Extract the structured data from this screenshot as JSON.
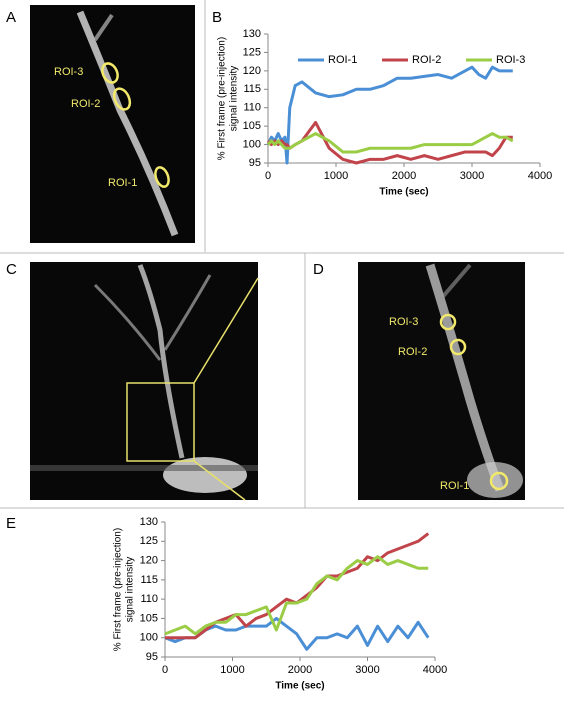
{
  "panels": {
    "A": {
      "letter": "A",
      "labels": [
        "ROI-3",
        "ROI-2",
        "ROI-1"
      ]
    },
    "B": {
      "letter": "B"
    },
    "C": {
      "letter": "C"
    },
    "D": {
      "letter": "D",
      "labels": [
        "ROI-3",
        "ROI-2",
        "ROI-1"
      ]
    },
    "E": {
      "letter": "E"
    }
  },
  "chart_data": [
    {
      "type": "line",
      "ylabel": [
        "% First frame (pre-injection)",
        "signal intensity"
      ],
      "xlabel": "Time (sec)",
      "xlim": [
        0,
        4000
      ],
      "xticks": [
        0,
        1000,
        2000,
        3000,
        4000
      ],
      "ylim": [
        95,
        130
      ],
      "yticks": [
        95,
        100,
        105,
        110,
        115,
        120,
        125,
        130
      ],
      "legend": "top",
      "x": [
        0,
        50,
        100,
        150,
        200,
        250,
        280,
        320,
        400,
        500,
        700,
        900,
        1100,
        1300,
        1500,
        1700,
        1900,
        2100,
        2300,
        2500,
        2700,
        2900,
        3000,
        3100,
        3200,
        3300,
        3400,
        3500,
        3600
      ],
      "series": [
        {
          "name": "ROI-1",
          "color": "#4a8fd6",
          "values": [
            100,
            102,
            101,
            103,
            101,
            102,
            95,
            110,
            116,
            117,
            114,
            113,
            113.5,
            115,
            115,
            116,
            118,
            118,
            118.5,
            119,
            118,
            120,
            121,
            119,
            118,
            121,
            120,
            120,
            120
          ]
        },
        {
          "name": "ROI-2",
          "color": "#c0444a",
          "values": [
            101,
            100,
            101,
            100,
            101,
            100,
            100,
            99,
            100,
            101,
            106,
            99,
            96,
            95,
            96,
            96,
            97,
            96,
            97,
            96,
            97,
            98,
            98,
            98,
            98,
            97,
            99,
            102,
            102
          ]
        },
        {
          "name": "ROI-3",
          "color": "#9acd45",
          "values": [
            100,
            101,
            100,
            101,
            100,
            99,
            99,
            99,
            100,
            101,
            103,
            101,
            98,
            98,
            99,
            99,
            99,
            99,
            100,
            100,
            100,
            100,
            100,
            101,
            102,
            103,
            102,
            102,
            101
          ]
        }
      ]
    },
    {
      "type": "line",
      "ylabel": [
        "% First frame (pre-injection)",
        "signal intensity"
      ],
      "xlabel": "Time (sec)",
      "xlim": [
        0,
        4000
      ],
      "xticks": [
        0,
        1000,
        2000,
        3000,
        4000
      ],
      "ylim": [
        95,
        130
      ],
      "yticks": [
        95,
        100,
        105,
        110,
        115,
        120,
        125,
        130
      ],
      "x": [
        0,
        150,
        300,
        450,
        600,
        750,
        900,
        1050,
        1200,
        1350,
        1500,
        1650,
        1800,
        1950,
        2100,
        2250,
        2400,
        2550,
        2700,
        2850,
        3000,
        3150,
        3300,
        3450,
        3600,
        3750,
        3900
      ],
      "series": [
        {
          "color": "#4a8fd6",
          "values": [
            100,
            99,
            100,
            100,
            102,
            103,
            102,
            102,
            103,
            103,
            103,
            105,
            103,
            101,
            97,
            100,
            100,
            101,
            100,
            103,
            98,
            103,
            99,
            103,
            100,
            104,
            100
          ]
        },
        {
          "color": "#c0444a",
          "values": [
            100,
            100,
            100,
            100,
            102,
            104,
            105,
            106,
            103,
            105,
            106,
            108,
            110,
            109,
            111,
            113,
            116,
            116,
            117,
            118,
            121,
            120,
            122,
            123,
            124,
            125,
            127
          ]
        },
        {
          "color": "#9acd45",
          "values": [
            101,
            102,
            103,
            101,
            103,
            104,
            104,
            106,
            106,
            107,
            108,
            102,
            109,
            109,
            110,
            114,
            116,
            115,
            118,
            120,
            119,
            121,
            119,
            120,
            119,
            118,
            118
          ]
        }
      ]
    }
  ]
}
